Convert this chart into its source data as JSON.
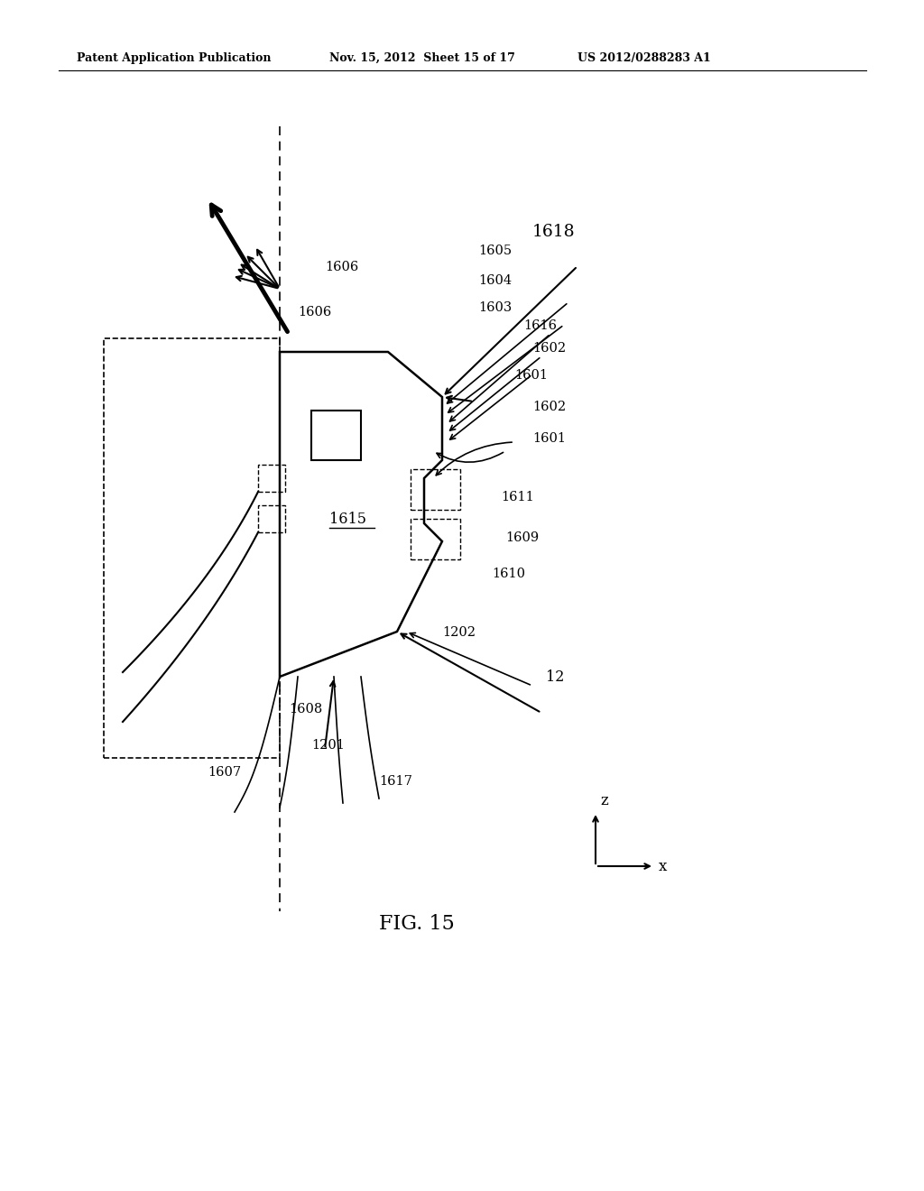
{
  "title_left": "Patent Application Publication",
  "title_mid": "Nov. 15, 2012  Sheet 15 of 17",
  "title_right": "US 2012/0288283 A1",
  "fig_label": "FIG. 15",
  "background": "#ffffff",
  "labels": {
    "1606_top": "1606",
    "1606_diag": "1606",
    "1605": "1605",
    "1618": "1618",
    "1604": "1604",
    "1603": "1603",
    "1616": "1616",
    "1602_top": "1602",
    "1601_top": "1601",
    "1602_mid": "1602",
    "1601_mid": "1601",
    "1615": "1615",
    "1611": "1611",
    "1609": "1609",
    "1610": "1610",
    "1202": "1202",
    "12": "12",
    "1608": "1608",
    "1201": "1201",
    "1607": "1607",
    "1617": "1617"
  }
}
